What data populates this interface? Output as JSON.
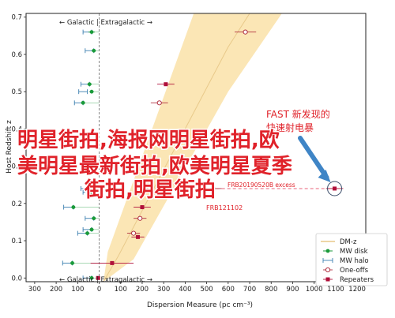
{
  "chart_data": {
    "type": "scatter",
    "xlabel": "Dispersion Measure (pc cm⁻³)",
    "ylabel": "Host Redshift z",
    "xlim": [
      -340,
      1240
    ],
    "ylim": [
      -0.01,
      0.71
    ],
    "x_ticks": [
      -300,
      -200,
      -100,
      0,
      100,
      200,
      300,
      400,
      500,
      600,
      700,
      800,
      900,
      1000,
      1100,
      1200
    ],
    "x_tick_labels": [
      "300",
      "200",
      "100",
      "0",
      "100",
      "200",
      "300",
      "400",
      "500",
      "600",
      "700",
      "800",
      "900",
      "1000",
      "1100",
      "1200"
    ],
    "y_ticks": [
      0.0,
      0.1,
      0.2,
      0.3,
      0.4,
      0.5,
      0.6,
      0.7
    ],
    "y_tick_labels": [
      "0.0",
      "0.1",
      "0.2",
      "0.3",
      "0.4",
      "0.5",
      "0.6",
      "0.7"
    ],
    "region_labels": {
      "top": "← Galactic | Extragalactic →",
      "bottom": "← Galactic | Extragalactic →"
    },
    "annotations": {
      "fast_title": "FAST 新发现的",
      "fast_title_line2": "快速射电暴",
      "excess": "FRB20190520B excess",
      "frb121102": "FRB121102"
    },
    "grid": false,
    "legend_position": "bottom-right",
    "legend": [
      {
        "label": "DM-z",
        "marker": "band"
      },
      {
        "label": "MW disk",
        "marker": "green-dot"
      },
      {
        "label": "MW halo",
        "marker": "blue-bracket"
      },
      {
        "label": "One-offs",
        "marker": "open-circle"
      },
      {
        "label": "Repeaters",
        "marker": "red-square"
      }
    ],
    "dm_z_band": {
      "centre": [
        [
          20,
          -0.01
        ],
        [
          90,
          0.06
        ],
        [
          600,
          0.62
        ],
        [
          700,
          0.71
        ]
      ],
      "upper": [
        [
          20,
          -0.01
        ],
        [
          40,
          0.07
        ],
        [
          440,
          0.71
        ]
      ],
      "lower": [
        [
          20,
          -0.01
        ],
        [
          160,
          0.05
        ],
        [
          600,
          0.5
        ],
        [
          850,
          0.71
        ]
      ]
    },
    "mw_disk": [
      {
        "y": 0.66,
        "x": -35,
        "xerr": 15
      },
      {
        "y": 0.61,
        "x": -25,
        "xerr": 10
      },
      {
        "y": 0.52,
        "x": -45,
        "xerr": 10
      },
      {
        "y": 0.5,
        "x": -35,
        "xerr": 10
      },
      {
        "y": 0.47,
        "x": -75,
        "xerr": 10
      },
      {
        "y": 0.24,
        "x": -40,
        "xerr": 10
      },
      {
        "y": 0.23,
        "x": -35,
        "xerr": 10
      },
      {
        "y": 0.19,
        "x": -120,
        "xerr": 10
      },
      {
        "y": 0.16,
        "x": -25,
        "xerr": 10
      },
      {
        "y": 0.13,
        "x": -35,
        "xerr": 10
      },
      {
        "y": 0.12,
        "x": -55,
        "xerr": 10
      },
      {
        "y": 0.04,
        "x": -125,
        "xerr": 10
      },
      {
        "y": 0.0,
        "x": -35,
        "xerr": 10
      }
    ],
    "mw_halo_caps": [
      {
        "y": 0.66,
        "x1": -75,
        "x2": -35
      },
      {
        "y": 0.61,
        "x1": -65,
        "x2": -25
      },
      {
        "y": 0.52,
        "x1": -85,
        "x2": -45
      },
      {
        "y": 0.5,
        "x1": -95,
        "x2": -55
      },
      {
        "y": 0.47,
        "x1": -115,
        "x2": -75
      },
      {
        "y": 0.24,
        "x1": -85,
        "x2": -40
      },
      {
        "y": 0.23,
        "x1": -75,
        "x2": -35
      },
      {
        "y": 0.19,
        "x1": -165,
        "x2": -120
      },
      {
        "y": 0.16,
        "x1": -65,
        "x2": -25
      },
      {
        "y": 0.13,
        "x1": -75,
        "x2": -35
      },
      {
        "y": 0.12,
        "x1": -100,
        "x2": -55
      },
      {
        "y": 0.04,
        "x1": -170,
        "x2": -125
      },
      {
        "y": 0.0,
        "x1": -75,
        "x2": -35
      }
    ],
    "one_offs": [
      {
        "x": 680,
        "y": 0.66,
        "xerr": 50
      },
      {
        "x": 280,
        "y": 0.47,
        "xerr": 40
      },
      {
        "x": 530,
        "y": 0.24,
        "xerr": 40
      },
      {
        "x": 190,
        "y": 0.16,
        "xerr": 30
      },
      {
        "x": 160,
        "y": 0.12,
        "xerr": 30
      }
    ],
    "repeaters": [
      {
        "x": 310,
        "y": 0.52,
        "xerr": 40
      },
      {
        "x": 1095,
        "y": 0.24,
        "xerr": 40
      },
      {
        "x": 200,
        "y": 0.19,
        "xerr": 40
      },
      {
        "x": 180,
        "y": 0.11,
        "xerr": 30
      },
      {
        "x": 60,
        "y": 0.04,
        "xerr": 100
      },
      {
        "x": -5,
        "y": 0.0,
        "xerr": 10
      }
    ],
    "highlight": {
      "x": 1095,
      "y": 0.24
    }
  },
  "overlay": {
    "line1": "明星街拍,海报网明星街拍,欧",
    "line2": "美明星最新街拍,欧美明星夏季",
    "line3": "街拍,明星街拍"
  },
  "colors": {
    "band_fill": "#fbe6b5",
    "band_line": "#e8c98a",
    "mw_disk": "#1a9a3a",
    "mw_halo": "#3b7fb0",
    "one_off": "#b03040",
    "repeater": "#b0103a",
    "fast_text": "#e0222a",
    "excess_line": "#e8607a",
    "arrow": "#3f85c6",
    "overlay_text": "#e0222a",
    "axis": "#222222"
  }
}
